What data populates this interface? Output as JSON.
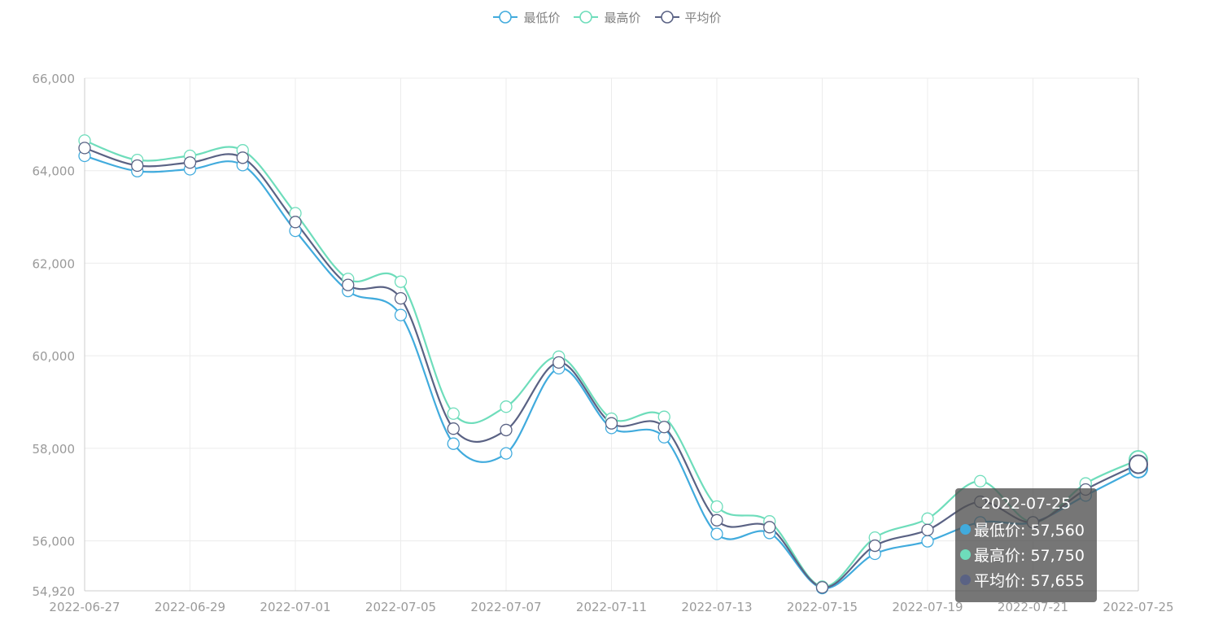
{
  "chart_data": {
    "type": "line",
    "x": [
      "2022-06-27",
      "2022-06-28",
      "2022-06-29",
      "2022-06-30",
      "2022-07-01",
      "2022-07-04",
      "2022-07-05",
      "2022-07-06",
      "2022-07-07",
      "2022-07-08",
      "2022-07-11",
      "2022-07-12",
      "2022-07-13",
      "2022-07-14",
      "2022-07-15",
      "2022-07-18",
      "2022-07-19",
      "2022-07-20",
      "2022-07-21",
      "2022-07-22",
      "2022-07-25"
    ],
    "x_tick_labels": [
      "2022-06-27",
      "2022-06-29",
      "2022-07-01",
      "2022-07-05",
      "2022-07-07",
      "2022-07-11",
      "2022-07-13",
      "2022-07-15",
      "2022-07-19",
      "2022-07-21",
      "2022-07-25"
    ],
    "series": [
      {
        "name": "最低价",
        "color": "#41ABDD",
        "values": [
          64320,
          63990,
          64030,
          64120,
          62700,
          61400,
          60880,
          58100,
          57890,
          59730,
          58440,
          58240,
          56150,
          56170,
          54980,
          55720,
          55990,
          56400,
          56400,
          56980,
          57560
        ]
      },
      {
        "name": "最高价",
        "color": "#6EDDBB",
        "values": [
          64650,
          64230,
          64320,
          64440,
          63080,
          61660,
          61600,
          58750,
          58900,
          59980,
          58640,
          58680,
          56740,
          56420,
          55010,
          56070,
          56480,
          57290,
          56400,
          57240,
          57750
        ]
      },
      {
        "name": "平均价",
        "color": "#5A6284",
        "values": [
          64490,
          64110,
          64175,
          64280,
          62890,
          61530,
          61240,
          58425,
          58395,
          59855,
          58540,
          58460,
          56445,
          56295,
          54995,
          55895,
          56235,
          56845,
          56400,
          57110,
          57655
        ]
      }
    ],
    "ylim": [
      54920,
      66000
    ],
    "y_ticks": [
      54920,
      56000,
      58000,
      60000,
      62000,
      64000,
      66000
    ],
    "y_tick_labels": [
      "54,920",
      "56,000",
      "58,000",
      "60,000",
      "62,000",
      "64,000",
      "66,000"
    ],
    "legend_position": "top-center",
    "grid": true,
    "smooth": true
  },
  "tooltip": {
    "title": "2022-07-25",
    "rows": [
      {
        "label": "最低价: 57,560",
        "color": "#41ABDD"
      },
      {
        "label": "最高价: 57,750",
        "color": "#6EDDBB"
      },
      {
        "label": "平均价: 57,655",
        "color": "#5A6284"
      }
    ]
  }
}
